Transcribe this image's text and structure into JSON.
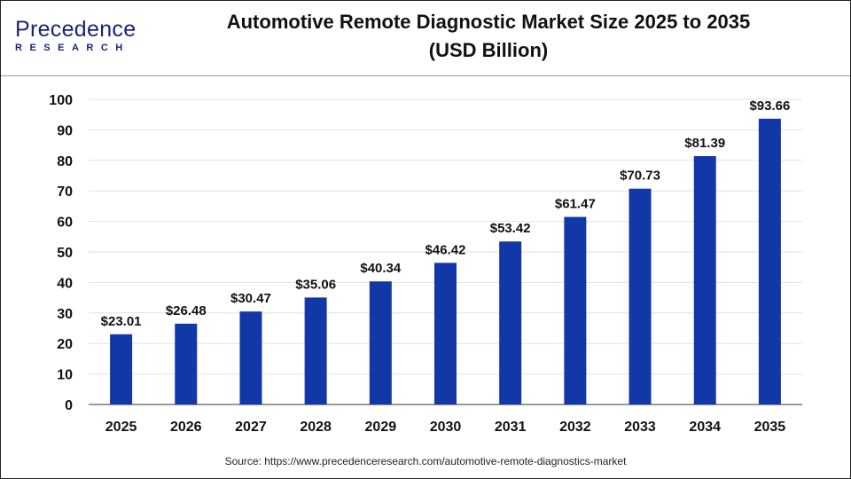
{
  "header": {
    "logo_text": "Precedence",
    "logo_subtext": "RESEARCH",
    "title_line1": "Automotive Remote Diagnostic Market Size 2025 to 2035",
    "title_line2": "(USD Billion)"
  },
  "source": "Source: https://www.precedenceresearch.com/automotive-remote-diagnostics-market",
  "chart_data": {
    "type": "bar",
    "title": "Automotive Remote Diagnostic Market Size 2025 to 2035 (USD Billion)",
    "categories": [
      "2025",
      "2026",
      "2027",
      "2028",
      "2029",
      "2030",
      "2031",
      "2032",
      "2033",
      "2034",
      "2035"
    ],
    "values": [
      23.01,
      26.48,
      30.47,
      35.06,
      40.34,
      46.42,
      53.42,
      61.47,
      70.73,
      81.39,
      93.66
    ],
    "data_labels": [
      "$23.01",
      "$26.48",
      "$30.47",
      "$35.06",
      "$40.34",
      "$46.42",
      "$53.42",
      "$61.47",
      "$70.73",
      "$81.39",
      "$93.66"
    ],
    "ylim": [
      0,
      100
    ],
    "yticks": [
      0,
      10,
      20,
      30,
      40,
      50,
      60,
      70,
      80,
      90,
      100
    ],
    "grid": true,
    "bar_color": "#1238a8",
    "xlabel": "",
    "ylabel": ""
  }
}
